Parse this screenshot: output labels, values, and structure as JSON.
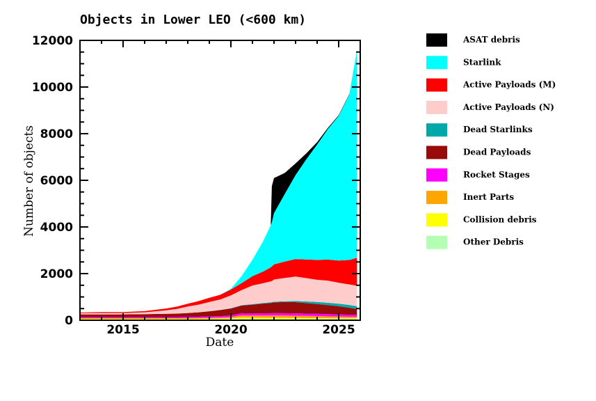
{
  "chart_data": {
    "type": "area",
    "title": "Objects in Lower LEO (<600 km)",
    "xlabel": "Date",
    "ylabel": "Number of objects",
    "xlim": [
      2013.0,
      2026.0
    ],
    "ylim": [
      0,
      12000
    ],
    "xticks": [
      2015,
      2020,
      2025
    ],
    "xtick_labels": [
      "2015",
      "2020",
      "2025"
    ],
    "yticks": [
      0,
      2000,
      4000,
      6000,
      8000,
      10000,
      12000
    ],
    "ytick_labels": [
      "0",
      "2000",
      "4000",
      "6000",
      "8000",
      "10000",
      "12000"
    ],
    "grid": false,
    "legend_position": "right",
    "x": [
      2013.0,
      2014.0,
      2015.0,
      2016.0,
      2017.0,
      2017.5,
      2018.0,
      2018.5,
      2019.0,
      2019.5,
      2020.0,
      2020.5,
      2021.0,
      2021.5,
      2021.85,
      2021.9,
      2022.0,
      2022.5,
      2023.0,
      2023.5,
      2024.0,
      2024.5,
      2025.0,
      2025.5,
      2025.85
    ],
    "series": [
      {
        "name": "Other Debris",
        "color": "#b3ffb3",
        "values": [
          40,
          40,
          40,
          40,
          40,
          40,
          40,
          40,
          45,
          45,
          50,
          60,
          60,
          60,
          60,
          60,
          60,
          60,
          60,
          60,
          60,
          60,
          60,
          60,
          60
        ]
      },
      {
        "name": "Collision debris",
        "color": "#ffff00",
        "values": [
          20,
          20,
          20,
          20,
          20,
          20,
          20,
          20,
          20,
          20,
          25,
          60,
          50,
          45,
          45,
          45,
          45,
          40,
          35,
          30,
          30,
          25,
          25,
          20,
          20
        ]
      },
      {
        "name": "Inert Parts",
        "color": "#ffa500",
        "values": [
          30,
          30,
          30,
          30,
          30,
          30,
          30,
          35,
          40,
          50,
          60,
          90,
          90,
          95,
          95,
          95,
          100,
          100,
          100,
          95,
          90,
          80,
          75,
          70,
          70
        ]
      },
      {
        "name": "Rocket Stages",
        "color": "#ff00ff",
        "values": [
          40,
          40,
          40,
          40,
          45,
          45,
          50,
          55,
          60,
          60,
          70,
          90,
          90,
          95,
          100,
          100,
          100,
          100,
          100,
          100,
          95,
          95,
          90,
          85,
          80
        ]
      },
      {
        "name": "Dead Payloads",
        "color": "#990a0a",
        "values": [
          120,
          120,
          120,
          130,
          140,
          150,
          170,
          190,
          220,
          260,
          300,
          330,
          380,
          420,
          440,
          450,
          460,
          480,
          480,
          450,
          420,
          390,
          350,
          300,
          250
        ]
      },
      {
        "name": "Dead Starlinks",
        "color": "#00a8a8",
        "values": [
          0,
          0,
          0,
          0,
          0,
          0,
          0,
          0,
          0,
          5,
          10,
          15,
          20,
          25,
          30,
          30,
          30,
          35,
          50,
          70,
          90,
          100,
          110,
          120,
          120
        ]
      },
      {
        "name": "Active Payloads (N)",
        "color": "#ffcccc",
        "values": [
          50,
          60,
          60,
          80,
          150,
          200,
          280,
          330,
          400,
          450,
          550,
          650,
          800,
          850,
          900,
          900,
          950,
          1000,
          1050,
          1000,
          950,
          950,
          900,
          880,
          880
        ]
      },
      {
        "name": "Active Payloads (M)",
        "color": "#ff0000",
        "values": [
          30,
          40,
          40,
          50,
          80,
          100,
          120,
          150,
          180,
          200,
          250,
          300,
          400,
          500,
          600,
          620,
          650,
          700,
          750,
          800,
          850,
          900,
          950,
          1050,
          1200
        ]
      },
      {
        "name": "Starlink",
        "color": "#00ffff",
        "values": [
          0,
          0,
          0,
          0,
          0,
          0,
          0,
          0,
          0,
          0,
          30,
          300,
          700,
          1300,
          1800,
          1900,
          2200,
          2900,
          3600,
          4300,
          4950,
          5600,
          6200,
          7100,
          8900
        ]
      },
      {
        "name": "ASAT debris",
        "color": "#000000",
        "values": [
          0,
          0,
          0,
          0,
          0,
          0,
          0,
          0,
          0,
          0,
          0,
          0,
          0,
          0,
          0,
          1550,
          1500,
          900,
          500,
          250,
          100,
          50,
          30,
          20,
          0
        ]
      }
    ]
  }
}
